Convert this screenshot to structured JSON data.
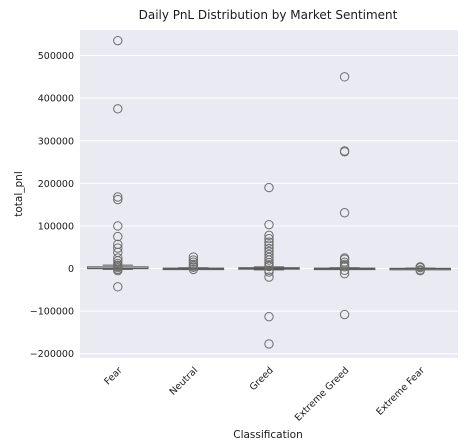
{
  "chart_data": {
    "type": "box",
    "title": "Daily PnL Distribution by Market Sentiment",
    "xlabel": "Classification",
    "ylabel": "total_pnl",
    "ylim": [
      -210000,
      560000
    ],
    "yticks": [
      -200000,
      -100000,
      0,
      100000,
      200000,
      300000,
      400000,
      500000
    ],
    "ytick_labels": [
      "−200000",
      "−100000",
      "0",
      "100000",
      "200000",
      "300000",
      "400000",
      "500000"
    ],
    "categories": [
      "Fear",
      "Neutral",
      "Greed",
      "Extreme Greed",
      "Extreme Fear"
    ],
    "boxes": [
      {
        "q1": 0,
        "median": 0,
        "q3": 4000,
        "whisker_low": -2000,
        "whisker_high": 8000,
        "fliers": [
          535000,
          375000,
          168000,
          162000,
          100000,
          75000,
          57000,
          48000,
          38000,
          25000,
          18000,
          12000,
          8000,
          5000,
          2000,
          -2000,
          -5000,
          -43000
        ]
      },
      {
        "q1": 0,
        "median": 0,
        "q3": 1000,
        "whisker_low": -1000,
        "whisker_high": 2000,
        "fliers": [
          27000,
          20000,
          15000,
          10000,
          6000,
          3000,
          -2000
        ]
      },
      {
        "q1": -1000,
        "median": 0,
        "q3": 2000,
        "whisker_low": -3000,
        "whisker_high": 4000,
        "fliers": [
          190000,
          103000,
          78000,
          70000,
          62000,
          55000,
          47000,
          40000,
          33000,
          26000,
          20000,
          14000,
          9000,
          5000,
          -4000,
          -8000,
          -20000,
          -113000,
          -177000
        ]
      },
      {
        "q1": 0,
        "median": 0,
        "q3": 1000,
        "whisker_low": -1000,
        "whisker_high": 2000,
        "fliers": [
          450000,
          276000,
          274000,
          131000,
          25000,
          22000,
          15000,
          10000,
          7000,
          4000,
          -4000,
          -12000,
          -108000
        ]
      },
      {
        "q1": 0,
        "median": 0,
        "q3": 500,
        "whisker_low": -500,
        "whisker_high": 1000,
        "fliers": [
          4000,
          2000,
          -3000,
          -5000
        ]
      }
    ]
  }
}
